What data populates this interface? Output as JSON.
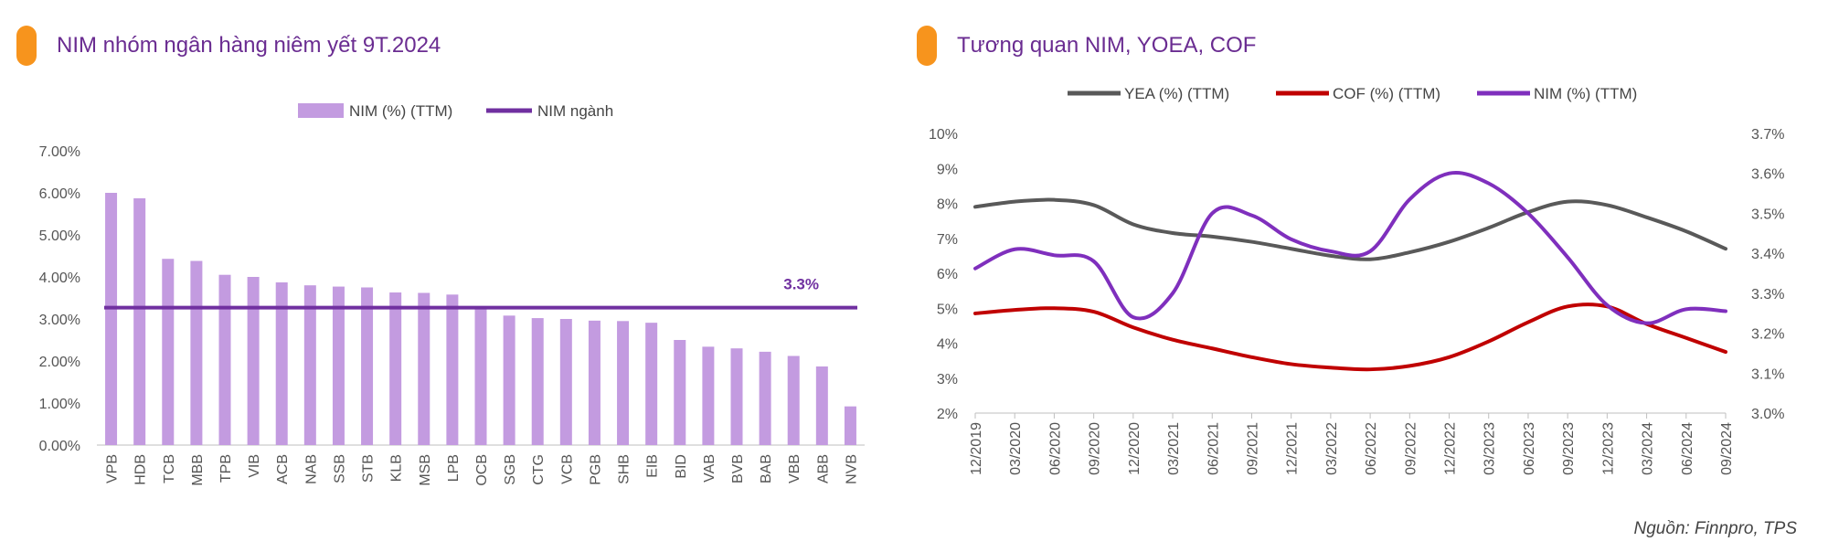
{
  "left_panel": {
    "title": "NIM nhóm ngân hàng niêm yết 9T.2024"
  },
  "right_panel": {
    "title": "Tương quan NIM,  YOEA, COF"
  },
  "source": "Nguồn: Finnpro, TPS",
  "colors": {
    "bar": "#c39be0",
    "industry_line": "#7030a0",
    "yea": "#595959",
    "cof": "#c00000",
    "nim": "#7f2fbd",
    "accent": "#f7941d",
    "title": "#6a2c91"
  },
  "chart_data": [
    {
      "type": "bar",
      "title": "NIM nhóm ngân hàng niêm yết 9T.2024",
      "categories": [
        "VPB",
        "HDB",
        "TCB",
        "MBB",
        "TPB",
        "VIB",
        "ACB",
        "NAB",
        "SSB",
        "STB",
        "KLB",
        "MSB",
        "LPB",
        "OCB",
        "SGB",
        "CTG",
        "VCB",
        "PGB",
        "SHB",
        "EIB",
        "BID",
        "VAB",
        "BVB",
        "BAB",
        "VBB",
        "ABB",
        "NVB"
      ],
      "series": [
        {
          "name": "NIM (%) (TTM)",
          "values": [
            6.0,
            5.87,
            4.43,
            4.38,
            4.05,
            4.0,
            3.87,
            3.8,
            3.77,
            3.75,
            3.63,
            3.62,
            3.58,
            3.3,
            3.08,
            3.02,
            3.0,
            2.96,
            2.95,
            2.91,
            2.5,
            2.34,
            2.3,
            2.22,
            2.12,
            1.87,
            0.92
          ]
        }
      ],
      "reference_line": {
        "name": "NIM ngành",
        "value": 3.27,
        "label": "3.3%"
      },
      "ylim": [
        0,
        7
      ],
      "yticks": [
        "0.00%",
        "1.00%",
        "2.00%",
        "3.00%",
        "4.00%",
        "5.00%",
        "6.00%",
        "7.00%"
      ],
      "legend": "top-center",
      "grid": false
    },
    {
      "type": "line",
      "title": "Tương quan NIM,  YOEA, COF",
      "x": [
        "12/2019",
        "03/2020",
        "06/2020",
        "09/2020",
        "12/2020",
        "03/2021",
        "06/2021",
        "09/2021",
        "12/2021",
        "03/2022",
        "06/2022",
        "09/2022",
        "12/2022",
        "03/2023",
        "06/2023",
        "09/2023",
        "12/2023",
        "03/2024",
        "06/2024",
        "09/2024"
      ],
      "series": [
        {
          "name": "YEA (%) (TTM)",
          "axis": "left",
          "values": [
            7.9,
            8.05,
            8.1,
            7.95,
            7.4,
            7.15,
            7.05,
            6.9,
            6.7,
            6.5,
            6.4,
            6.6,
            6.9,
            7.3,
            7.75,
            8.05,
            7.95,
            7.6,
            7.2,
            6.7
          ]
        },
        {
          "name": "COF (%) (TTM)",
          "axis": "left",
          "values": [
            4.85,
            4.95,
            5.0,
            4.9,
            4.45,
            4.1,
            3.85,
            3.6,
            3.4,
            3.3,
            3.25,
            3.35,
            3.6,
            4.05,
            4.6,
            5.05,
            5.05,
            4.55,
            4.15,
            3.75
          ]
        },
        {
          "name": "NIM (%) (TTM)",
          "axis": "right",
          "values": [
            3.362,
            3.41,
            3.395,
            3.38,
            3.24,
            3.3,
            3.5,
            3.495,
            3.435,
            3.405,
            3.405,
            3.535,
            3.6,
            3.575,
            3.5,
            3.39,
            3.27,
            3.225,
            3.26,
            3.255
          ]
        }
      ],
      "ylim_left": [
        2,
        10
      ],
      "yticks_left": [
        "2%",
        "3%",
        "4%",
        "5%",
        "6%",
        "7%",
        "8%",
        "9%",
        "10%"
      ],
      "ylim_right": [
        3.0,
        3.7
      ],
      "yticks_right": [
        "3.0%",
        "3.1%",
        "3.2%",
        "3.3%",
        "3.4%",
        "3.5%",
        "3.6%",
        "3.7%"
      ],
      "legend": "top-center",
      "grid": false
    }
  ]
}
